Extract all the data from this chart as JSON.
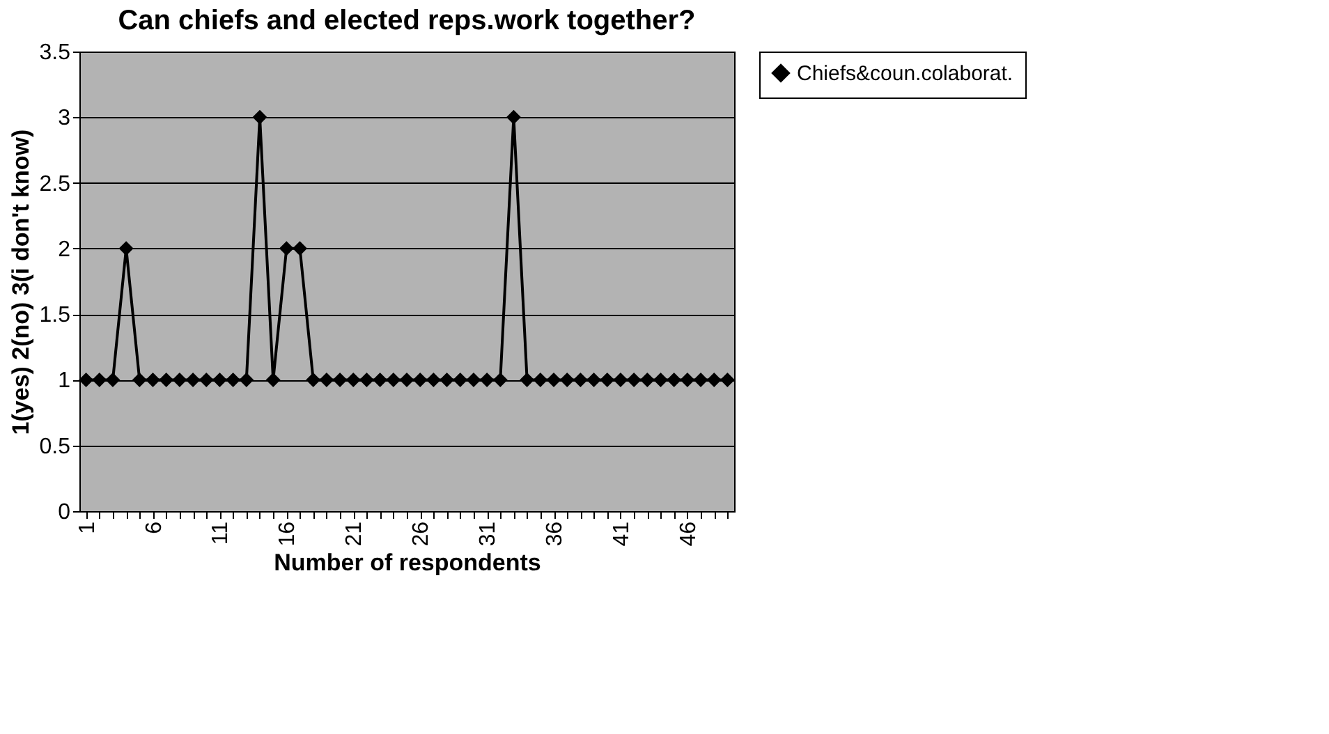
{
  "chart_data": {
    "type": "line",
    "title": "Can chiefs and elected reps.work together?",
    "xlabel": "Number of respondents",
    "ylabel": "1(yes) 2(no) 3(i don't know)",
    "categories": [
      "1",
      null,
      null,
      null,
      null,
      "6",
      null,
      null,
      null,
      null,
      "11",
      null,
      null,
      null,
      null,
      "16",
      null,
      null,
      null,
      null,
      "21",
      null,
      null,
      null,
      null,
      "26",
      null,
      null,
      null,
      null,
      "31",
      null,
      null,
      null,
      null,
      "36",
      null,
      null,
      null,
      null,
      "41",
      null,
      null,
      null,
      null,
      "46",
      null,
      null,
      null
    ],
    "series": [
      {
        "name": "Chiefs&coun.colaborat.",
        "color": "#000000",
        "values": [
          1,
          1,
          1,
          2,
          1,
          1,
          1,
          1,
          1,
          1,
          1,
          1,
          1,
          3,
          1,
          2,
          2,
          1,
          1,
          1,
          1,
          1,
          1,
          1,
          1,
          1,
          1,
          1,
          1,
          1,
          1,
          1,
          3,
          1,
          1,
          1,
          1,
          1,
          1,
          1,
          1,
          1,
          1,
          1,
          1,
          1,
          1,
          1,
          1
        ]
      }
    ],
    "ylim": [
      0,
      3.5
    ],
    "yticks": [
      0,
      0.5,
      1,
      1.5,
      2,
      2.5,
      3,
      3.5
    ],
    "grid": "y",
    "legend": "right",
    "marker": "diamond",
    "line_style": "solid"
  }
}
